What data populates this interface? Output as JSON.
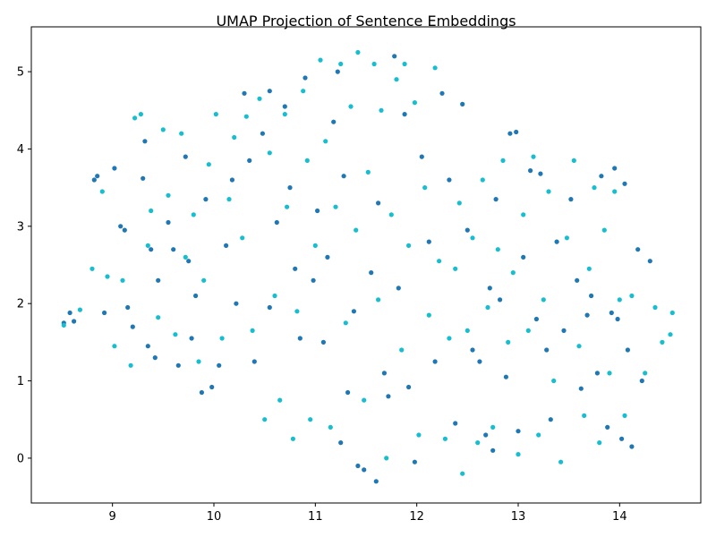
{
  "chart_data": {
    "type": "scatter",
    "title": "UMAP Projection of Sentence Embeddings",
    "xlabel": "",
    "ylabel": "",
    "xlim": [
      8.2,
      14.8
    ],
    "ylim": [
      -0.58,
      5.58
    ],
    "xticks": [
      9,
      10,
      11,
      12,
      13,
      14
    ],
    "yticks": [
      0,
      1,
      2,
      3,
      4,
      5
    ],
    "grid": false,
    "legend": "none",
    "colors": [
      "#1f77b4",
      "#17becf"
    ],
    "series": [
      {
        "color": "#1f77b4",
        "points": [
          [
            8.52,
            1.75
          ],
          [
            8.58,
            1.88
          ],
          [
            8.62,
            1.77
          ],
          [
            8.82,
            3.6
          ],
          [
            8.85,
            3.65
          ],
          [
            8.92,
            1.88
          ],
          [
            9.02,
            3.75
          ],
          [
            9.08,
            3.0
          ],
          [
            9.12,
            2.95
          ],
          [
            9.15,
            1.95
          ],
          [
            9.2,
            1.7
          ],
          [
            9.3,
            3.62
          ],
          [
            9.32,
            4.1
          ],
          [
            9.35,
            1.45
          ],
          [
            9.38,
            2.7
          ],
          [
            9.42,
            1.3
          ],
          [
            9.45,
            2.3
          ],
          [
            9.55,
            3.05
          ],
          [
            9.6,
            2.7
          ],
          [
            9.65,
            1.2
          ],
          [
            9.72,
            3.9
          ],
          [
            9.78,
            1.55
          ],
          [
            9.82,
            2.1
          ],
          [
            9.88,
            0.85
          ],
          [
            9.92,
            3.35
          ],
          [
            9.98,
            0.92
          ],
          [
            10.05,
            1.2
          ],
          [
            10.12,
            2.75
          ],
          [
            10.18,
            3.6
          ],
          [
            10.22,
            2.0
          ],
          [
            10.3,
            4.72
          ],
          [
            10.35,
            3.85
          ],
          [
            10.4,
            1.25
          ],
          [
            10.48,
            4.2
          ],
          [
            10.55,
            4.75
          ],
          [
            10.62,
            3.05
          ],
          [
            10.7,
            4.55
          ],
          [
            10.75,
            3.5
          ],
          [
            10.8,
            2.45
          ],
          [
            10.85,
            1.55
          ],
          [
            10.9,
            4.92
          ],
          [
            10.98,
            2.3
          ],
          [
            11.02,
            3.2
          ],
          [
            11.08,
            1.5
          ],
          [
            11.12,
            2.6
          ],
          [
            11.18,
            4.35
          ],
          [
            11.22,
            5.0
          ],
          [
            11.28,
            3.65
          ],
          [
            11.32,
            0.85
          ],
          [
            11.38,
            1.9
          ],
          [
            11.42,
            -0.1
          ],
          [
            11.48,
            -0.15
          ],
          [
            11.55,
            2.4
          ],
          [
            11.62,
            3.3
          ],
          [
            11.68,
            1.1
          ],
          [
            11.72,
            0.8
          ],
          [
            11.78,
            5.2
          ],
          [
            11.82,
            2.2
          ],
          [
            11.88,
            4.45
          ],
          [
            11.92,
            0.92
          ],
          [
            11.98,
            -0.05
          ],
          [
            12.05,
            3.9
          ],
          [
            12.12,
            2.8
          ],
          [
            12.18,
            1.25
          ],
          [
            12.25,
            4.72
          ],
          [
            12.32,
            3.6
          ],
          [
            12.38,
            0.45
          ],
          [
            12.45,
            4.58
          ],
          [
            12.5,
            2.95
          ],
          [
            12.55,
            1.4
          ],
          [
            12.62,
            1.25
          ],
          [
            12.68,
            0.3
          ],
          [
            12.72,
            2.2
          ],
          [
            12.78,
            3.35
          ],
          [
            12.82,
            2.05
          ],
          [
            12.88,
            1.05
          ],
          [
            12.92,
            4.2
          ],
          [
            12.98,
            4.22
          ],
          [
            13.05,
            2.6
          ],
          [
            13.12,
            3.72
          ],
          [
            13.18,
            1.8
          ],
          [
            13.22,
            3.68
          ],
          [
            13.28,
            1.4
          ],
          [
            13.32,
            0.5
          ],
          [
            13.38,
            2.8
          ],
          [
            13.45,
            1.65
          ],
          [
            13.52,
            3.35
          ],
          [
            13.58,
            2.3
          ],
          [
            13.62,
            0.9
          ],
          [
            13.68,
            1.85
          ],
          [
            13.72,
            2.1
          ],
          [
            13.78,
            1.1
          ],
          [
            13.82,
            3.65
          ],
          [
            13.88,
            0.4
          ],
          [
            13.92,
            1.88
          ],
          [
            13.95,
            3.75
          ],
          [
            13.98,
            1.8
          ],
          [
            14.02,
            0.25
          ],
          [
            14.05,
            3.55
          ],
          [
            14.08,
            1.4
          ],
          [
            14.12,
            0.15
          ],
          [
            14.18,
            2.7
          ],
          [
            14.22,
            1.0
          ],
          [
            14.3,
            2.55
          ],
          [
            12.75,
            0.1
          ],
          [
            13.0,
            0.35
          ],
          [
            11.6,
            -0.3
          ],
          [
            11.25,
            0.2
          ],
          [
            10.55,
            1.95
          ],
          [
            9.75,
            2.55
          ]
        ]
      },
      {
        "color": "#17becf",
        "points": [
          [
            8.52,
            1.72
          ],
          [
            8.68,
            1.92
          ],
          [
            8.8,
            2.45
          ],
          [
            8.9,
            3.45
          ],
          [
            8.95,
            2.35
          ],
          [
            9.02,
            1.45
          ],
          [
            9.1,
            2.3
          ],
          [
            9.18,
            1.2
          ],
          [
            9.22,
            4.4
          ],
          [
            9.28,
            4.45
          ],
          [
            9.35,
            2.75
          ],
          [
            9.38,
            3.2
          ],
          [
            9.45,
            1.82
          ],
          [
            9.5,
            4.25
          ],
          [
            9.55,
            3.4
          ],
          [
            9.62,
            1.6
          ],
          [
            9.68,
            4.2
          ],
          [
            9.72,
            2.6
          ],
          [
            9.8,
            3.15
          ],
          [
            9.85,
            1.25
          ],
          [
            9.9,
            2.3
          ],
          [
            9.95,
            3.8
          ],
          [
            10.02,
            4.45
          ],
          [
            10.08,
            1.55
          ],
          [
            10.15,
            3.35
          ],
          [
            10.2,
            4.15
          ],
          [
            10.28,
            2.85
          ],
          [
            10.32,
            4.42
          ],
          [
            10.38,
            1.65
          ],
          [
            10.45,
            4.65
          ],
          [
            10.5,
            0.5
          ],
          [
            10.55,
            3.95
          ],
          [
            10.6,
            2.1
          ],
          [
            10.65,
            0.75
          ],
          [
            10.7,
            4.45
          ],
          [
            10.72,
            3.25
          ],
          [
            10.78,
            0.25
          ],
          [
            10.82,
            1.9
          ],
          [
            10.88,
            4.75
          ],
          [
            10.92,
            3.85
          ],
          [
            10.95,
            0.5
          ],
          [
            11.0,
            2.75
          ],
          [
            11.05,
            5.15
          ],
          [
            11.1,
            4.1
          ],
          [
            11.15,
            0.4
          ],
          [
            11.2,
            3.25
          ],
          [
            11.25,
            5.1
          ],
          [
            11.3,
            1.75
          ],
          [
            11.35,
            4.55
          ],
          [
            11.4,
            2.95
          ],
          [
            11.42,
            5.25
          ],
          [
            11.48,
            0.75
          ],
          [
            11.52,
            3.7
          ],
          [
            11.58,
            5.1
          ],
          [
            11.62,
            2.05
          ],
          [
            11.65,
            4.5
          ],
          [
            11.7,
            0.0
          ],
          [
            11.75,
            3.15
          ],
          [
            11.8,
            4.9
          ],
          [
            11.85,
            1.4
          ],
          [
            11.88,
            5.1
          ],
          [
            11.92,
            2.75
          ],
          [
            11.98,
            4.6
          ],
          [
            12.02,
            0.3
          ],
          [
            12.08,
            3.5
          ],
          [
            12.12,
            1.85
          ],
          [
            12.18,
            5.05
          ],
          [
            12.22,
            2.55
          ],
          [
            12.28,
            0.25
          ],
          [
            12.32,
            1.55
          ],
          [
            12.38,
            2.45
          ],
          [
            12.42,
            3.3
          ],
          [
            12.45,
            -0.2
          ],
          [
            12.5,
            1.65
          ],
          [
            12.55,
            2.85
          ],
          [
            12.6,
            0.2
          ],
          [
            12.65,
            3.6
          ],
          [
            12.7,
            1.95
          ],
          [
            12.75,
            0.4
          ],
          [
            12.8,
            2.7
          ],
          [
            12.85,
            3.85
          ],
          [
            12.9,
            1.5
          ],
          [
            12.95,
            2.4
          ],
          [
            13.0,
            0.05
          ],
          [
            13.05,
            3.15
          ],
          [
            13.1,
            1.65
          ],
          [
            13.15,
            3.9
          ],
          [
            13.2,
            0.3
          ],
          [
            13.25,
            2.05
          ],
          [
            13.3,
            3.45
          ],
          [
            13.35,
            1.0
          ],
          [
            13.42,
            -0.05
          ],
          [
            13.48,
            2.85
          ],
          [
            13.55,
            3.85
          ],
          [
            13.6,
            1.45
          ],
          [
            13.65,
            0.55
          ],
          [
            13.7,
            2.45
          ],
          [
            13.75,
            3.5
          ],
          [
            13.8,
            0.2
          ],
          [
            13.85,
            2.95
          ],
          [
            13.9,
            1.1
          ],
          [
            13.95,
            3.45
          ],
          [
            14.0,
            2.05
          ],
          [
            14.05,
            0.55
          ],
          [
            14.12,
            2.1
          ],
          [
            14.25,
            1.1
          ],
          [
            14.35,
            1.95
          ],
          [
            14.42,
            1.5
          ],
          [
            14.5,
            1.6
          ],
          [
            14.52,
            1.88
          ]
        ]
      }
    ]
  }
}
